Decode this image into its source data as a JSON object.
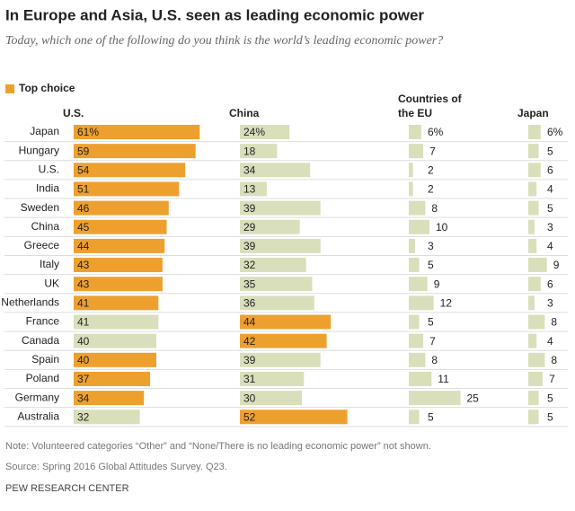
{
  "chart_data": {
    "type": "table-bar",
    "title": "In Europe and Asia, U.S. seen as leading economic power",
    "subtitle": "Today, which one of the following do you think is the world’s leading economic power?",
    "legend": {
      "label": "Top choice",
      "color": "#eea02f"
    },
    "base_color": "#d9dfba",
    "categories": [
      "Japan",
      "Hungary",
      "U.S.",
      "India",
      "Sweden",
      "China",
      "Greece",
      "Italy",
      "UK",
      "Netherlands",
      "France",
      "Canada",
      "Spain",
      "Poland",
      "Germany",
      "Australia"
    ],
    "series": [
      {
        "name": "U.S.",
        "values": [
          61,
          59,
          54,
          51,
          46,
          45,
          44,
          43,
          43,
          41,
          41,
          40,
          40,
          37,
          34,
          32
        ],
        "value_labels": [
          "61%",
          "59",
          "54",
          "51",
          "46",
          "45",
          "44",
          "43",
          "43",
          "41",
          "41",
          "40",
          "40",
          "37",
          "34",
          "32"
        ]
      },
      {
        "name": "China",
        "values": [
          24,
          18,
          34,
          13,
          39,
          29,
          39,
          32,
          35,
          36,
          44,
          42,
          39,
          31,
          30,
          52
        ],
        "value_labels": [
          "24%",
          "18",
          "34",
          "13",
          "39",
          "29",
          "39",
          "32",
          "35",
          "36",
          "44",
          "42",
          "39",
          "31",
          "30",
          "52"
        ]
      },
      {
        "name": "Countries of the EU",
        "values": [
          6,
          7,
          2,
          2,
          8,
          10,
          3,
          5,
          9,
          12,
          5,
          7,
          8,
          11,
          25,
          5
        ],
        "value_labels": [
          "6%",
          "7",
          "2",
          "2",
          "8",
          "10",
          "3",
          "5",
          "9",
          "12",
          "5",
          "7",
          "8",
          "11",
          "25",
          "5"
        ]
      },
      {
        "name": "Japan",
        "values": [
          6,
          5,
          6,
          4,
          5,
          3,
          4,
          9,
          6,
          3,
          8,
          4,
          8,
          7,
          5,
          5
        ],
        "value_labels": [
          "6%",
          "5",
          "6",
          "4",
          "5",
          "3",
          "4",
          "9",
          "6",
          "3",
          "8",
          "4",
          "8",
          "7",
          "5",
          "5"
        ]
      }
    ],
    "note": "Note: Volunteered categories “Other” and “None/There is no leading economic power” not shown.",
    "source": "Source: Spring 2016 Global Attitudes Survey. Q23.",
    "credit": "PEW RESEARCH CENTER"
  }
}
